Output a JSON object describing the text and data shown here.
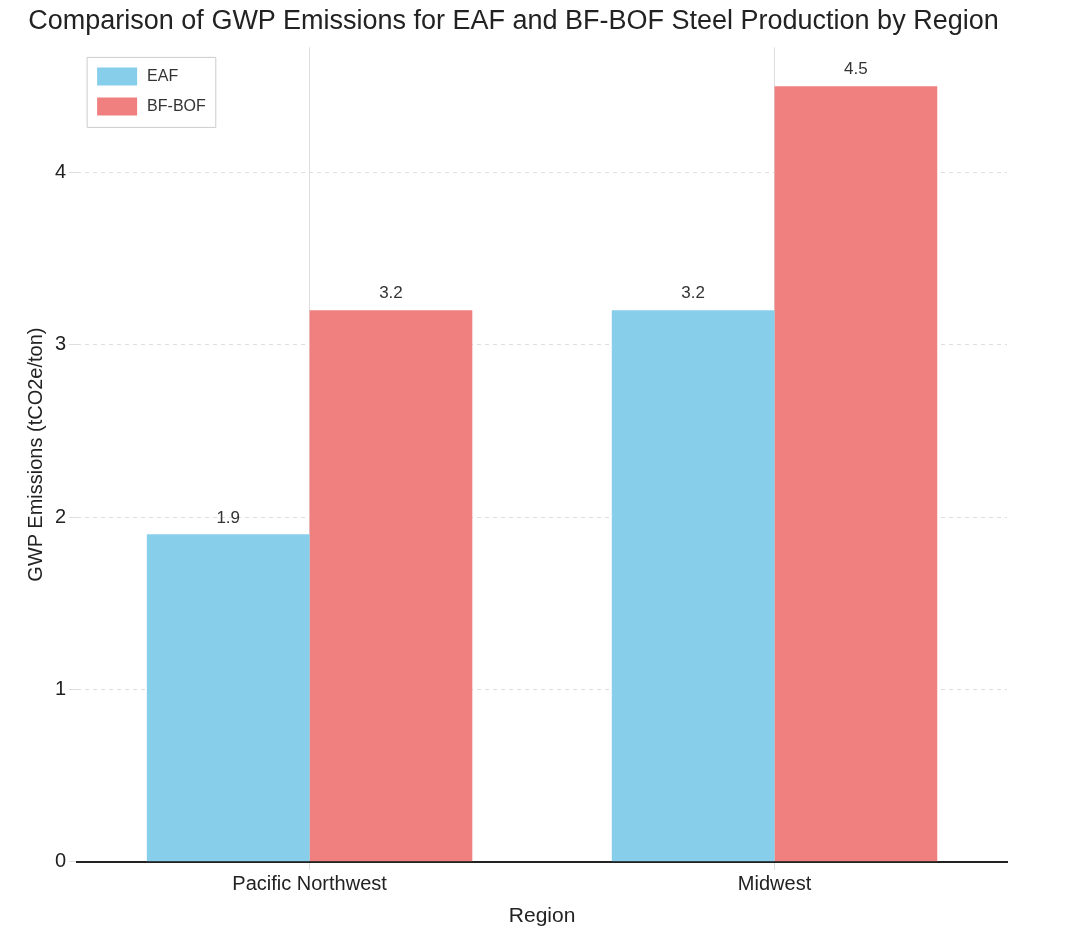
{
  "chart_data": {
    "type": "bar",
    "title": "Comparison of GWP Emissions for EAF and BF-BOF Steel Production by Region",
    "xlabel": "Region",
    "ylabel": "GWP Emissions (tCO2e/ton)",
    "categories": [
      "Pacific Northwest",
      "Midwest"
    ],
    "series": [
      {
        "name": "EAF",
        "color": "#87ceeb",
        "values": [
          1.9,
          3.2
        ]
      },
      {
        "name": "BF-BOF",
        "color": "#f08080",
        "values": [
          3.2,
          4.5
        ]
      }
    ],
    "ylim": [
      0,
      4.725
    ],
    "yticks": [
      0,
      1,
      2,
      3,
      4
    ],
    "grid": true,
    "legend": "top left",
    "data_labels": true
  }
}
